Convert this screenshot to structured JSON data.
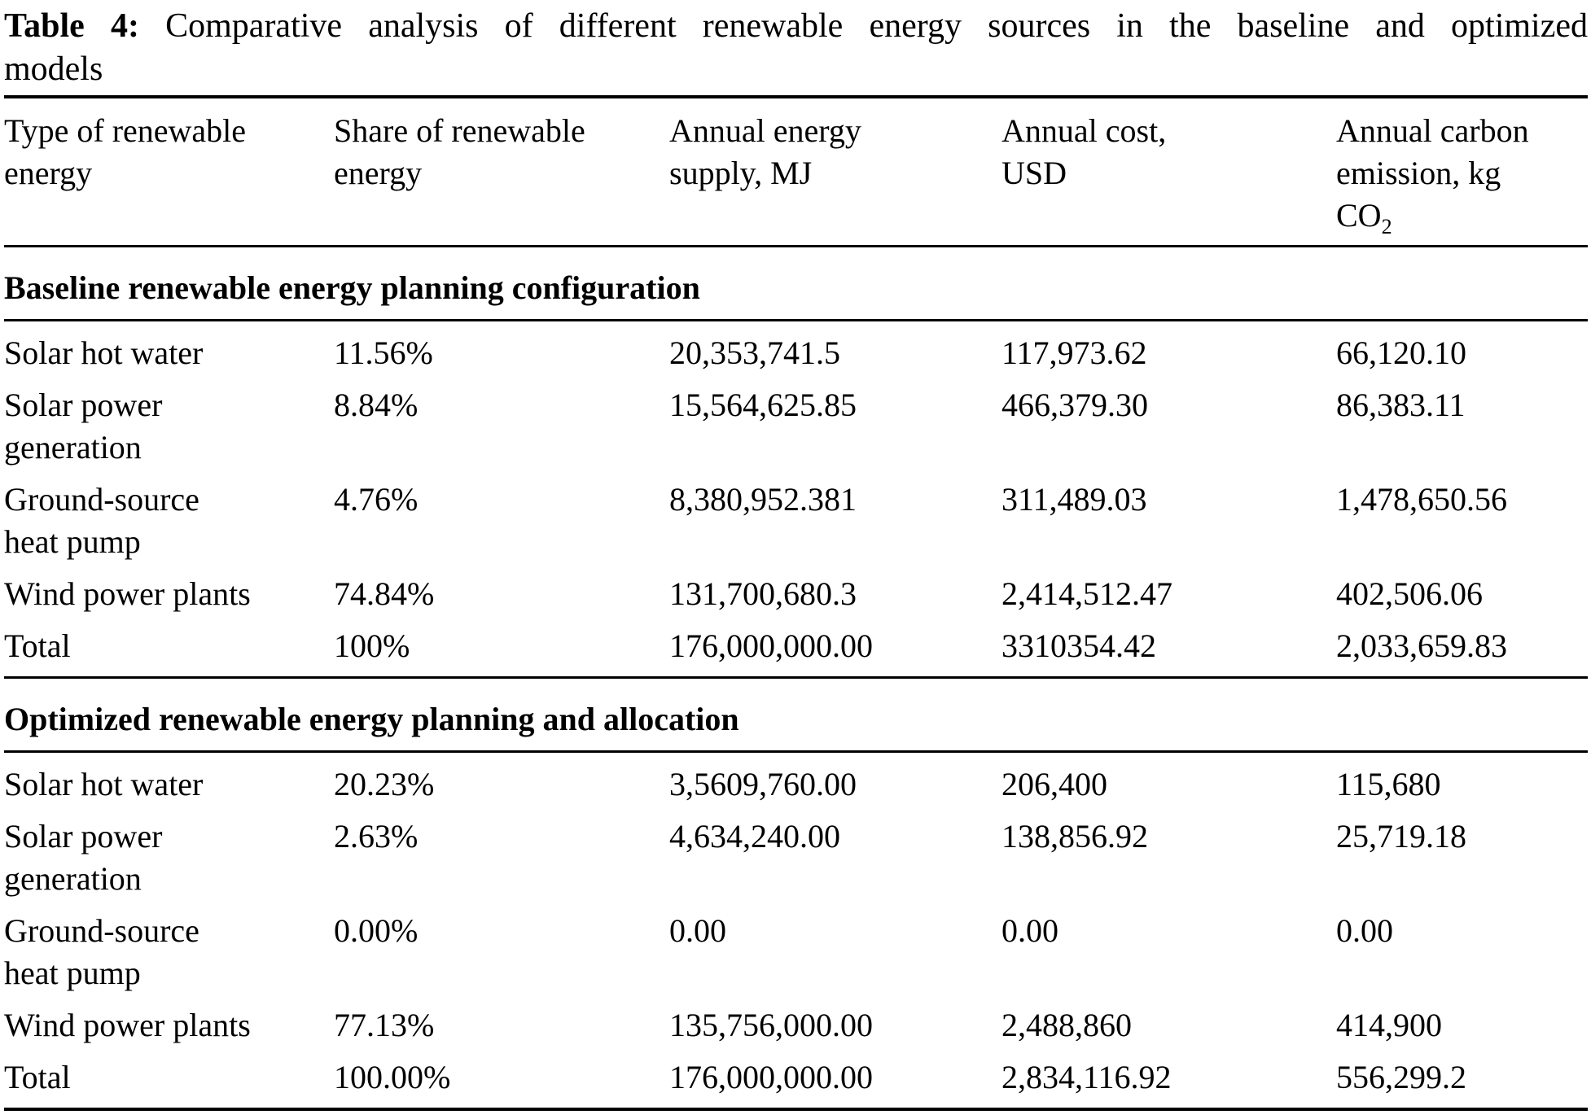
{
  "caption": {
    "label": "Table 4:",
    "text_line1": "Comparative analysis of different renewable energy sources in the baseline and optimized",
    "text_line2": "models"
  },
  "table": {
    "headers": [
      "Type of renewable\nenergy",
      "Share of renewable\nenergy",
      "Annual energy\nsupply, MJ",
      "Annual cost,\nUSD",
      "Annual carbon\nemission, kg"
    ],
    "co2": {
      "base": "CO",
      "sub": "2"
    },
    "sections": [
      {
        "header": "Baseline renewable energy planning configuration",
        "rows": [
          {
            "cells": [
              "Solar hot water",
              "11.56%",
              "20,353,741.5",
              "117,973.62",
              "66,120.10"
            ]
          },
          {
            "cells": [
              "Solar power\ngeneration",
              "8.84%",
              "15,564,625.85",
              "466,379.30",
              "86,383.11"
            ]
          },
          {
            "cells": [
              "Ground-source\nheat pump",
              "4.76%",
              "8,380,952.381",
              "311,489.03",
              "1,478,650.56"
            ]
          },
          {
            "cells": [
              "Wind power plants",
              "74.84%",
              "131,700,680.3",
              "2,414,512.47",
              "402,506.06"
            ]
          },
          {
            "cells": [
              "Total",
              "100%",
              "176,000,000.00",
              "3310354.42",
              "2,033,659.83"
            ]
          }
        ]
      },
      {
        "header": "Optimized renewable energy planning and allocation",
        "rows": [
          {
            "cells": [
              "Solar hot water",
              "20.23%",
              "3,5609,760.00",
              "206,400",
              "115,680"
            ]
          },
          {
            "cells": [
              "Solar power\ngeneration",
              "2.63%",
              "4,634,240.00",
              "138,856.92",
              "25,719.18"
            ]
          },
          {
            "cells": [
              "Ground-source\nheat pump",
              "0.00%",
              "0.00",
              "0.00",
              "0.00"
            ]
          },
          {
            "cells": [
              "Wind power plants",
              "77.13%",
              "135,756,000.00",
              "2,488,860",
              "414,900"
            ]
          },
          {
            "cells": [
              "Total",
              "100.00%",
              "176,000,000.00",
              "2,834,116.92",
              "556,299.2"
            ]
          }
        ]
      }
    ]
  }
}
